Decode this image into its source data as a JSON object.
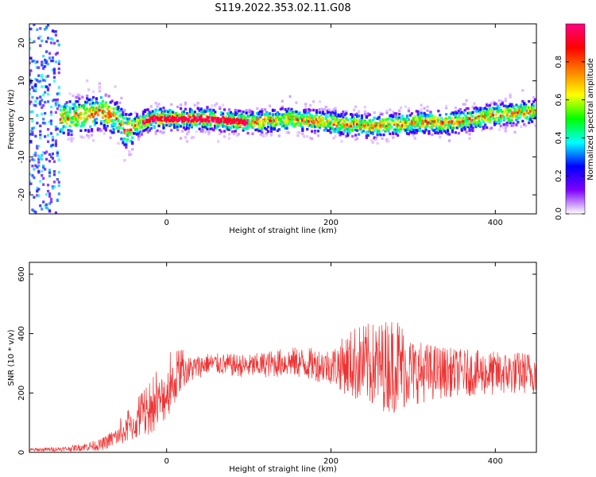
{
  "title": "S119.2022.353.02.11.G08",
  "chart_data": [
    {
      "type": "heatmap",
      "xlabel": "Height of straight line (km)",
      "ylabel": "Frequency (Hz)",
      "xlim": [
        -167,
        450
      ],
      "ylim": [
        -25,
        25
      ],
      "x_ticks": [
        0,
        200,
        400
      ],
      "y_ticks": [
        -20,
        -10,
        0,
        10,
        20
      ],
      "colorbar": {
        "label": "Normalized spectral amplitude",
        "range": [
          0,
          1
        ],
        "ticks": [
          "0.0",
          "0.2",
          "0.4",
          "0.6",
          "0.8"
        ],
        "colors": [
          "#ffffff",
          "#7f00ff",
          "#0000ff",
          "#00ffff",
          "#00ff00",
          "#ffff00",
          "#ff7f00",
          "#ff0000",
          "#ff0080"
        ]
      },
      "ridge": {
        "description_points_x": [
          -130,
          -100,
          -80,
          -60,
          -50,
          -40,
          -20,
          0,
          50,
          100,
          150,
          200,
          250,
          300,
          350,
          400,
          450
        ],
        "frequency": [
          0,
          1,
          2,
          0,
          -3,
          -2,
          0,
          0,
          0,
          -1,
          0,
          -1,
          -2,
          -1,
          -1,
          1,
          2
        ]
      }
    },
    {
      "type": "line",
      "xlabel": "Height of straight line (km)",
      "ylabel": "SNR (10 * v/v)",
      "xlim": [
        -167,
        450
      ],
      "ylim": [
        0,
        640
      ],
      "x_ticks": [
        0,
        200,
        400
      ],
      "y_ticks": [
        0,
        200,
        400,
        600
      ],
      "color": "#ee3333",
      "envelope": {
        "x": [
          -167,
          -120,
          -80,
          -50,
          -20,
          0,
          20,
          50,
          100,
          150,
          200,
          230,
          260,
          280,
          300,
          350,
          400,
          450
        ],
        "mean": [
          8,
          12,
          25,
          70,
          130,
          200,
          270,
          300,
          290,
          305,
          290,
          300,
          290,
          300,
          270,
          270,
          265,
          270
        ],
        "spread": [
          6,
          8,
          20,
          40,
          70,
          90,
          50,
          35,
          40,
          50,
          60,
          130,
          150,
          170,
          110,
          80,
          75,
          70
        ]
      }
    }
  ]
}
